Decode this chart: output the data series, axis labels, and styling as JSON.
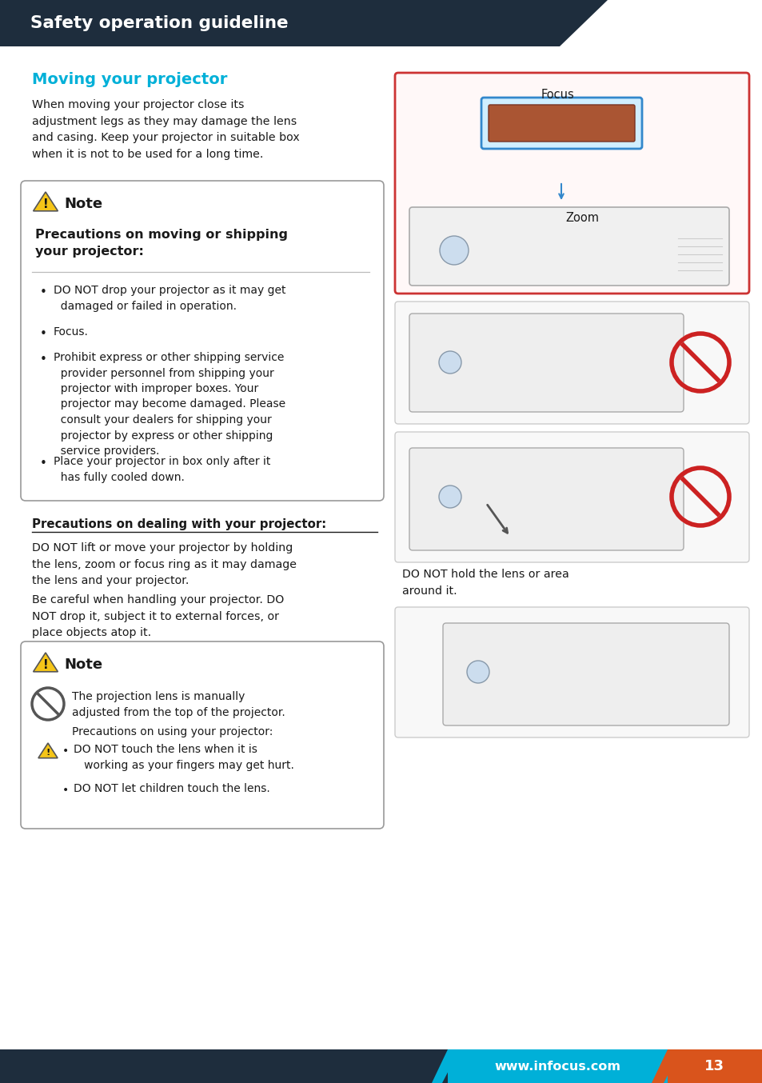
{
  "header_bg": "#1e2d3d",
  "header_text": "Safety operation guideline",
  "header_text_color": "#ffffff",
  "footer_bg": "#1e2d3d",
  "footer_cyan_bg": "#00b0d8",
  "footer_orange_bg": "#d9541c",
  "footer_url": "www.infocus.com",
  "footer_page": "13",
  "section_title": "Moving your projector",
  "section_title_color": "#00b0d8",
  "body_text_color": "#1a1a1a",
  "bg_color": "#ffffff",
  "intro_text": "When moving your projector close its\nadjustment legs as they may damage the lens\nand casing. Keep your projector in suitable box\nwhen it is not to be used for a long time.",
  "note_box1_title": "Note",
  "note_box1_subtitle": "Precautions on moving or shipping\nyour projector:",
  "note_box1_bullets": [
    "DO NOT drop your projector as it may get\n  damaged or failed in operation.",
    "Focus.",
    "Prohibit express or other shipping service\n  provider personnel from shipping your\n  projector with improper boxes. Your\n  projector may become damaged. Please\n  consult your dealers for shipping your\n  projector by express or other shipping\n  service providers.",
    "Place your projector in box only after it\n  has fully cooled down."
  ],
  "section2_title": "Precautions on dealing with your projector:",
  "section2_para1": "DO NOT lift or move your projector by holding\nthe lens, zoom or focus ring as it may damage\nthe lens and your projector.",
  "section2_para2": "Be careful when handling your projector. DO\nNOT drop it, subject it to external forces, or\nplace objects atop it.",
  "note_box2_title": "Note",
  "note_box2_para": "The projection lens is manually\nadjusted from the top of the projector.",
  "note_box2_sub": "Precautions on using your projector:",
  "note_box2_bullets": [
    "DO NOT touch the lens when it is\n   working as your fingers may get hurt.",
    "DO NOT let children touch the lens."
  ],
  "right_label1": "Focus",
  "right_label2": "Zoom",
  "caption_right": "DO NOT hold the lens or area\naround it."
}
